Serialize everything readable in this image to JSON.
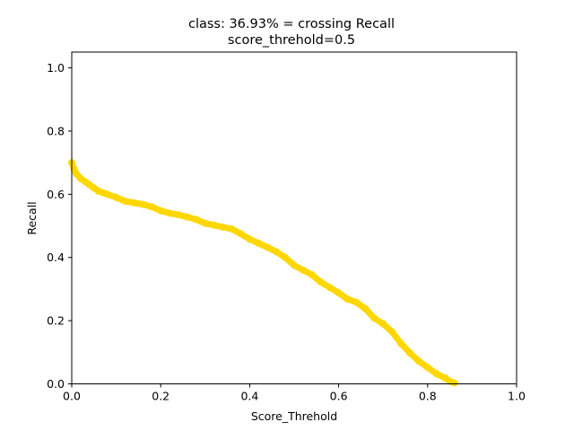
{
  "chart_data": {
    "type": "line",
    "title": "class: 36.93% = crossing Recall",
    "subtitle": "score_threhold=0.5",
    "xlabel": "Score_Threhold",
    "ylabel": "Recall",
    "xlim": [
      0.0,
      1.0
    ],
    "ylim": [
      0.0,
      1.05
    ],
    "xticks": [
      "0.0",
      "0.2",
      "0.4",
      "0.6",
      "0.8",
      "1.0"
    ],
    "yticks": [
      "0.0",
      "0.2",
      "0.4",
      "0.6",
      "0.8",
      "1.0"
    ],
    "grid": false,
    "series": [
      {
        "color": "#FFD700",
        "x": [
          0.0,
          0.005,
          0.01,
          0.02,
          0.03,
          0.04,
          0.05,
          0.06,
          0.07,
          0.08,
          0.1,
          0.12,
          0.14,
          0.16,
          0.18,
          0.2,
          0.22,
          0.24,
          0.26,
          0.28,
          0.3,
          0.32,
          0.34,
          0.36,
          0.38,
          0.4,
          0.42,
          0.44,
          0.46,
          0.48,
          0.5,
          0.52,
          0.54,
          0.56,
          0.58,
          0.6,
          0.62,
          0.64,
          0.66,
          0.68,
          0.7,
          0.72,
          0.74,
          0.76,
          0.78,
          0.8,
          0.82,
          0.84,
          0.85,
          0.86
        ],
        "y": [
          0.7,
          0.68,
          0.665,
          0.65,
          0.64,
          0.63,
          0.62,
          0.61,
          0.605,
          0.6,
          0.59,
          0.578,
          0.573,
          0.568,
          0.56,
          0.548,
          0.54,
          0.535,
          0.528,
          0.52,
          0.508,
          0.502,
          0.496,
          0.49,
          0.475,
          0.458,
          0.445,
          0.432,
          0.418,
          0.4,
          0.375,
          0.36,
          0.345,
          0.322,
          0.305,
          0.288,
          0.268,
          0.258,
          0.238,
          0.208,
          0.19,
          0.165,
          0.128,
          0.098,
          0.072,
          0.052,
          0.032,
          0.018,
          0.008,
          0.003
        ]
      }
    ]
  }
}
